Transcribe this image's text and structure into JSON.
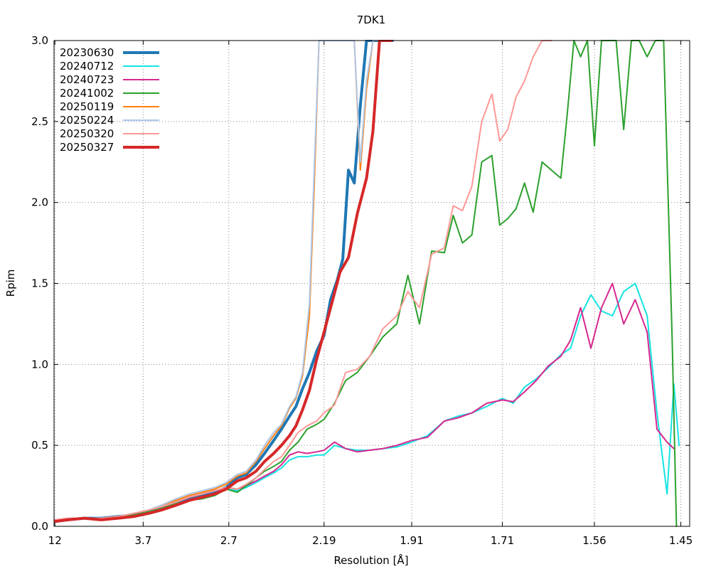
{
  "chart_data": {
    "type": "line",
    "title": "7DK1",
    "xlabel": "Resolution [Å]",
    "ylabel": "Rpim",
    "x_scale": "reciprocal-square",
    "xlim": [
      12.6,
      1.44
    ],
    "ylim": [
      0,
      3.0
    ],
    "grid": true,
    "legend_position": "top-left",
    "x_ticks": [
      {
        "label": "12",
        "value": 12
      },
      {
        "label": "3.7",
        "value": 3.7
      },
      {
        "label": "2.7",
        "value": 2.7
      },
      {
        "label": "2.19",
        "value": 2.19
      },
      {
        "label": "1.91",
        "value": 1.91
      },
      {
        "label": "1.71",
        "value": 1.71
      },
      {
        "label": "1.56",
        "value": 1.56
      },
      {
        "label": "1.45",
        "value": 1.45
      }
    ],
    "y_ticks": [
      "0.0",
      "0.5",
      "1.0",
      "1.5",
      "2.0",
      "2.5",
      "3.0"
    ],
    "series": [
      {
        "name": "20230630",
        "color": "#1f77b4",
        "width": 4,
        "x": [
          12.0,
          7.8,
          5.9,
          4.9,
          4.3,
          3.9,
          3.6,
          3.4,
          3.2,
          3.05,
          2.92,
          2.81,
          2.72,
          2.64,
          2.58,
          2.52,
          2.47,
          2.42,
          2.38,
          2.34,
          2.31,
          2.28,
          2.25,
          2.22,
          2.19,
          2.165,
          2.14,
          2.12,
          2.1,
          2.08,
          2.06,
          2.04,
          2.02,
          2.005,
          1.99,
          1.975,
          1.962
        ],
        "y": [
          0.03,
          0.04,
          0.05,
          0.05,
          0.06,
          0.07,
          0.09,
          0.11,
          0.14,
          0.17,
          0.19,
          0.21,
          0.24,
          0.3,
          0.32,
          0.38,
          0.45,
          0.53,
          0.6,
          0.68,
          0.74,
          0.85,
          0.95,
          1.08,
          1.18,
          1.4,
          1.52,
          1.65,
          2.2,
          2.12,
          2.6,
          3.0,
          3.0,
          3.0,
          3.0,
          3.0,
          3.0
        ]
      },
      {
        "name": "20240712",
        "color": "#17e3e3",
        "width": 2,
        "x": [
          12.0,
          7.8,
          5.9,
          4.9,
          4.3,
          3.9,
          3.6,
          3.4,
          3.2,
          3.05,
          2.92,
          2.81,
          2.72,
          2.64,
          2.58,
          2.52,
          2.47,
          2.42,
          2.38,
          2.34,
          2.3,
          2.26,
          2.22,
          2.19,
          2.15,
          2.11,
          2.07,
          2.03,
          1.99,
          1.95,
          1.91,
          1.87,
          1.83,
          1.8,
          1.77,
          1.74,
          1.71,
          1.69,
          1.67,
          1.65,
          1.63,
          1.61,
          1.595,
          1.58,
          1.565,
          1.55,
          1.535,
          1.52,
          1.505,
          1.49,
          1.478,
          1.466,
          1.458,
          1.452
        ],
        "y": [
          0.03,
          0.04,
          0.05,
          0.05,
          0.06,
          0.07,
          0.09,
          0.11,
          0.14,
          0.16,
          0.18,
          0.2,
          0.23,
          0.22,
          0.24,
          0.27,
          0.3,
          0.33,
          0.36,
          0.41,
          0.43,
          0.43,
          0.44,
          0.44,
          0.5,
          0.48,
          0.47,
          0.47,
          0.48,
          0.49,
          0.52,
          0.56,
          0.65,
          0.68,
          0.7,
          0.74,
          0.79,
          0.76,
          0.86,
          0.91,
          0.98,
          1.06,
          1.1,
          1.3,
          1.43,
          1.33,
          1.3,
          1.45,
          1.5,
          1.3,
          0.7,
          0.2,
          0.88,
          0.5
        ]
      },
      {
        "name": "20240723",
        "color": "#d62790",
        "width": 2,
        "x": [
          12.0,
          7.8,
          5.9,
          4.9,
          4.3,
          3.9,
          3.6,
          3.4,
          3.2,
          3.05,
          2.92,
          2.81,
          2.72,
          2.64,
          2.58,
          2.52,
          2.47,
          2.42,
          2.38,
          2.34,
          2.3,
          2.26,
          2.22,
          2.19,
          2.15,
          2.11,
          2.07,
          2.03,
          1.99,
          1.95,
          1.91,
          1.87,
          1.83,
          1.8,
          1.77,
          1.74,
          1.71,
          1.69,
          1.67,
          1.65,
          1.63,
          1.61,
          1.595,
          1.58,
          1.565,
          1.55,
          1.535,
          1.52,
          1.505,
          1.49,
          1.478,
          1.466,
          1.458
        ],
        "y": [
          0.03,
          0.04,
          0.05,
          0.05,
          0.06,
          0.07,
          0.1,
          0.12,
          0.15,
          0.18,
          0.2,
          0.22,
          0.24,
          0.23,
          0.25,
          0.28,
          0.31,
          0.34,
          0.38,
          0.44,
          0.46,
          0.45,
          0.46,
          0.47,
          0.52,
          0.48,
          0.46,
          0.47,
          0.48,
          0.5,
          0.53,
          0.55,
          0.65,
          0.67,
          0.7,
          0.76,
          0.78,
          0.77,
          0.83,
          0.9,
          0.99,
          1.05,
          1.15,
          1.35,
          1.1,
          1.35,
          1.5,
          1.25,
          1.4,
          1.2,
          0.6,
          0.52,
          0.48
        ]
      },
      {
        "name": "20241002",
        "color": "#2ca02c",
        "width": 2,
        "x": [
          12.0,
          7.8,
          5.9,
          4.9,
          4.3,
          3.9,
          3.6,
          3.4,
          3.2,
          3.05,
          2.92,
          2.81,
          2.72,
          2.64,
          2.58,
          2.52,
          2.47,
          2.42,
          2.38,
          2.34,
          2.3,
          2.26,
          2.22,
          2.19,
          2.15,
          2.11,
          2.07,
          2.03,
          1.99,
          1.95,
          1.92,
          1.89,
          1.86,
          1.83,
          1.81,
          1.79,
          1.77,
          1.75,
          1.73,
          1.715,
          1.7,
          1.685,
          1.67,
          1.655,
          1.64,
          1.625,
          1.61,
          1.6,
          1.59,
          1.58,
          1.57,
          1.56,
          1.55,
          1.54,
          1.53,
          1.52,
          1.51,
          1.5,
          1.49,
          1.48,
          1.47,
          1.46,
          1.455
        ],
        "y": [
          0.03,
          0.04,
          0.05,
          0.05,
          0.06,
          0.07,
          0.09,
          0.11,
          0.14,
          0.16,
          0.17,
          0.19,
          0.23,
          0.21,
          0.25,
          0.3,
          0.34,
          0.37,
          0.4,
          0.47,
          0.52,
          0.6,
          0.63,
          0.66,
          0.76,
          0.9,
          0.95,
          1.05,
          1.17,
          1.25,
          1.55,
          1.25,
          1.7,
          1.69,
          1.92,
          1.75,
          1.8,
          2.25,
          2.29,
          1.86,
          1.9,
          1.96,
          2.12,
          1.94,
          2.25,
          2.2,
          2.15,
          2.55,
          3.0,
          2.9,
          3.0,
          2.35,
          3.0,
          3.0,
          3.0,
          2.45,
          3.0,
          3.0,
          2.9,
          3.0,
          3.0,
          1.15,
          0.0
        ]
      },
      {
        "name": "20250119",
        "color": "#ff7f0e",
        "width": 2,
        "x": [
          12.0,
          7.8,
          5.9,
          4.9,
          4.3,
          3.9,
          3.6,
          3.4,
          3.2,
          3.05,
          2.92,
          2.81,
          2.72,
          2.64,
          2.58,
          2.52,
          2.47,
          2.42,
          2.38,
          2.34,
          2.31,
          2.28,
          2.25,
          2.23,
          2.21,
          2.195,
          2.185,
          2.08,
          2.06,
          2.04,
          2.02,
          2.005
        ],
        "y": [
          0.03,
          0.04,
          0.05,
          0.05,
          0.06,
          0.08,
          0.1,
          0.13,
          0.16,
          0.19,
          0.21,
          0.23,
          0.26,
          0.31,
          0.33,
          0.4,
          0.48,
          0.56,
          0.62,
          0.73,
          0.79,
          0.93,
          1.3,
          2.1,
          3.0,
          3.0,
          3.0,
          3.0,
          2.2,
          2.7,
          3.0,
          3.0
        ]
      },
      {
        "name": "20250224",
        "color": "#aec7e8",
        "width": 2,
        "x": [
          12.0,
          7.8,
          5.9,
          4.9,
          4.3,
          3.9,
          3.6,
          3.4,
          3.2,
          3.05,
          2.92,
          2.81,
          2.72,
          2.64,
          2.58,
          2.52,
          2.47,
          2.42,
          2.38,
          2.34,
          2.31,
          2.28,
          2.25,
          2.23,
          2.21,
          2.195,
          2.185,
          2.08,
          2.06,
          2.04,
          2.02,
          2.005
        ],
        "y": [
          0.04,
          0.05,
          0.05,
          0.05,
          0.06,
          0.08,
          0.1,
          0.13,
          0.17,
          0.2,
          0.22,
          0.24,
          0.27,
          0.32,
          0.34,
          0.41,
          0.5,
          0.58,
          0.63,
          0.74,
          0.8,
          0.95,
          1.38,
          2.2,
          3.0,
          3.0,
          3.0,
          3.0,
          2.25,
          2.75,
          3.0,
          3.0
        ]
      },
      {
        "name": "20250320",
        "color": "#ff9896",
        "width": 2,
        "x": [
          12.0,
          7.8,
          5.9,
          4.9,
          4.3,
          3.9,
          3.6,
          3.4,
          3.2,
          3.05,
          2.92,
          2.81,
          2.72,
          2.64,
          2.58,
          2.52,
          2.47,
          2.42,
          2.38,
          2.34,
          2.3,
          2.26,
          2.22,
          2.19,
          2.15,
          2.11,
          2.07,
          2.03,
          1.99,
          1.95,
          1.92,
          1.89,
          1.86,
          1.83,
          1.81,
          1.79,
          1.77,
          1.75,
          1.73,
          1.715,
          1.7,
          1.685,
          1.67,
          1.655,
          1.64,
          1.625
        ],
        "y": [
          0.04,
          0.05,
          0.05,
          0.05,
          0.06,
          0.08,
          0.1,
          0.12,
          0.15,
          0.18,
          0.2,
          0.22,
          0.24,
          0.23,
          0.26,
          0.3,
          0.35,
          0.4,
          0.43,
          0.5,
          0.58,
          0.62,
          0.65,
          0.7,
          0.75,
          0.95,
          0.97,
          1.05,
          1.22,
          1.3,
          1.45,
          1.35,
          1.68,
          1.72,
          1.98,
          1.95,
          2.1,
          2.5,
          2.67,
          2.38,
          2.45,
          2.65,
          2.75,
          2.9,
          3.0,
          3.0
        ]
      },
      {
        "name": "20250327",
        "color": "#d62728",
        "width": 4,
        "x": [
          12.0,
          7.8,
          5.9,
          4.9,
          4.3,
          3.9,
          3.6,
          3.4,
          3.2,
          3.05,
          2.92,
          2.81,
          2.72,
          2.64,
          2.58,
          2.52,
          2.47,
          2.42,
          2.38,
          2.34,
          2.31,
          2.28,
          2.25,
          2.22,
          2.19,
          2.16,
          2.13,
          2.1,
          2.07,
          2.04,
          2.02,
          2.0,
          1.98,
          1.965
        ],
        "y": [
          0.03,
          0.04,
          0.05,
          0.04,
          0.05,
          0.06,
          0.08,
          0.1,
          0.13,
          0.16,
          0.18,
          0.2,
          0.23,
          0.28,
          0.3,
          0.34,
          0.4,
          0.45,
          0.5,
          0.56,
          0.62,
          0.72,
          0.84,
          1.03,
          1.2,
          1.38,
          1.57,
          1.66,
          1.93,
          2.15,
          2.44,
          3.0,
          3.0,
          3.0
        ]
      }
    ]
  }
}
